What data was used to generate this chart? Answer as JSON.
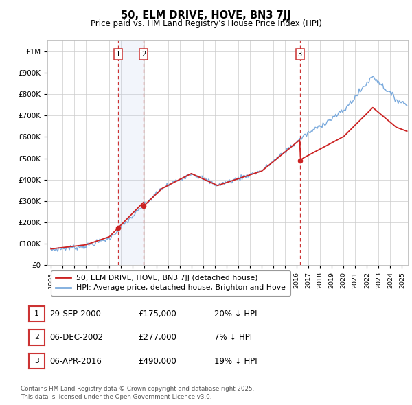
{
  "title1": "50, ELM DRIVE, HOVE, BN3 7JJ",
  "title2": "Price paid vs. HM Land Registry's House Price Index (HPI)",
  "ylim": [
    0,
    1050000
  ],
  "yticks": [
    0,
    100000,
    200000,
    300000,
    400000,
    500000,
    600000,
    700000,
    800000,
    900000,
    1000000
  ],
  "ytick_labels": [
    "£0",
    "£100K",
    "£200K",
    "£300K",
    "£400K",
    "£500K",
    "£600K",
    "£700K",
    "£800K",
    "£900K",
    "£1M"
  ],
  "hpi_color": "#7aaadd",
  "price_color": "#cc2222",
  "vline_color": "#cc3333",
  "highlight_color": "#ddeeff",
  "sale_dates_float": [
    2000.747,
    2002.922,
    2016.264
  ],
  "sale_prices": [
    175000,
    277000,
    490000
  ],
  "transaction_table": [
    {
      "num": "1",
      "date": "29-SEP-2000",
      "price": "£175,000",
      "pct": "20% ↓ HPI"
    },
    {
      "num": "2",
      "date": "06-DEC-2002",
      "price": "£277,000",
      "pct": "7% ↓ HPI"
    },
    {
      "num": "3",
      "date": "06-APR-2016",
      "price": "£490,000",
      "pct": "19% ↓ HPI"
    }
  ],
  "legend1": "50, ELM DRIVE, HOVE, BN3 7JJ (detached house)",
  "legend2": "HPI: Average price, detached house, Brighton and Hove",
  "footnote": "Contains HM Land Registry data © Crown copyright and database right 2025.\nThis data is licensed under the Open Government Licence v3.0."
}
